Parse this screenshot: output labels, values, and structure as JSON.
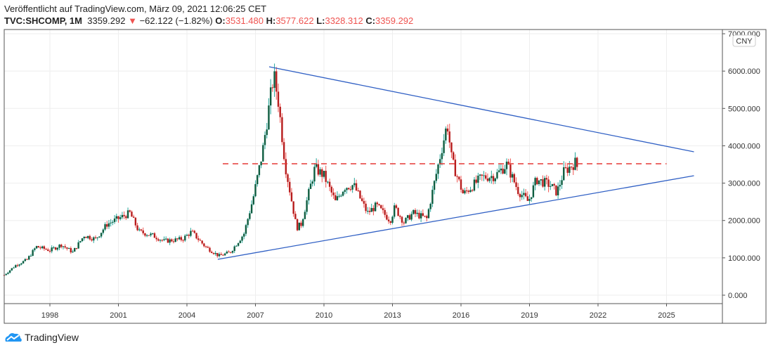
{
  "header": {
    "published": "Veröffentlicht auf TradingView.com, März 09, 2021 12:06:25 CET",
    "symbol": "TVC:SHCOMP, 1M",
    "last": "3359.292",
    "change": "−62.122 (−1.82%)",
    "o_label": "O:",
    "o": "3531.480",
    "h_label": "H:",
    "h": "3577.622",
    "l_label": "L:",
    "l": "3328.312",
    "c_label": "C:",
    "c": "3359.292"
  },
  "currency_badge": "CNY",
  "brand": "TradingView",
  "colors": {
    "up_body": "#0d5c3f",
    "up_wick": "#26a69a",
    "down_body": "#b71c1c",
    "down_wick": "#ef5350",
    "trend": "#2f5fc4",
    "level": "#e53935"
  },
  "chart_data": {
    "type": "candlestick",
    "title": "TVC:SHCOMP, 1M",
    "x_ticks": [
      "1998",
      "2001",
      "2004",
      "2007",
      "2010",
      "2013",
      "2016",
      "2019",
      "2022",
      "2025"
    ],
    "y_ticks": [
      "0.000",
      "1000.000",
      "2000.000",
      "3000.000",
      "4000.000",
      "5000.000",
      "6000.000",
      "7000.000"
    ],
    "ylim": [
      0,
      7000
    ],
    "xlim": [
      1996.0,
      2027.5
    ],
    "grid": true,
    "monthly_close_anchors": [
      [
        1996.0,
        540
      ],
      [
        1996.5,
        800
      ],
      [
        1997.0,
        950
      ],
      [
        1997.4,
        1300
      ],
      [
        1998.0,
        1200
      ],
      [
        1998.5,
        1350
      ],
      [
        1999.0,
        1150
      ],
      [
        1999.5,
        1600
      ],
      [
        2000.0,
        1500
      ],
      [
        2000.5,
        1900
      ],
      [
        2001.0,
        2050
      ],
      [
        2001.5,
        2200
      ],
      [
        2001.9,
        1700
      ],
      [
        2002.5,
        1600
      ],
      [
        2003.0,
        1450
      ],
      [
        2003.8,
        1500
      ],
      [
        2004.2,
        1700
      ],
      [
        2004.8,
        1300
      ],
      [
        2005.4,
        1050
      ],
      [
        2005.9,
        1150
      ],
      [
        2006.5,
        1650
      ],
      [
        2006.9,
        2600
      ],
      [
        2007.3,
        3800
      ],
      [
        2007.8,
        5900
      ],
      [
        2008.0,
        5200
      ],
      [
        2008.3,
        3500
      ],
      [
        2008.8,
        1800
      ],
      [
        2009.0,
        1900
      ],
      [
        2009.6,
        3400
      ],
      [
        2010.0,
        3200
      ],
      [
        2010.5,
        2500
      ],
      [
        2010.9,
        2900
      ],
      [
        2011.3,
        2950
      ],
      [
        2011.9,
        2200
      ],
      [
        2012.3,
        2400
      ],
      [
        2012.9,
        2000
      ],
      [
        2013.1,
        2350
      ],
      [
        2013.5,
        1950
      ],
      [
        2013.9,
        2200
      ],
      [
        2014.5,
        2050
      ],
      [
        2014.9,
        3200
      ],
      [
        2015.4,
        4600
      ],
      [
        2015.6,
        3600
      ],
      [
        2016.1,
        2700
      ],
      [
        2016.9,
        3150
      ],
      [
        2017.5,
        3200
      ],
      [
        2018.0,
        3500
      ],
      [
        2018.5,
        2800
      ],
      [
        2018.95,
        2500
      ],
      [
        2019.3,
        3100
      ],
      [
        2019.9,
        2950
      ],
      [
        2020.2,
        2750
      ],
      [
        2020.5,
        3300
      ],
      [
        2021.0,
        3550
      ],
      [
        2021.15,
        3359
      ]
    ],
    "annotations": [
      {
        "kind": "trendline",
        "name": "upper",
        "from": [
          2007.6,
          6116
        ],
        "to": [
          2026.2,
          3839
        ]
      },
      {
        "kind": "trendline",
        "name": "lower",
        "from": [
          2005.35,
          960
        ],
        "to": [
          2026.2,
          3199
        ]
      },
      {
        "kind": "horizontal-dashed",
        "name": "resistance",
        "value": 3520,
        "from": 2005.57,
        "to": 2025.0
      }
    ]
  }
}
